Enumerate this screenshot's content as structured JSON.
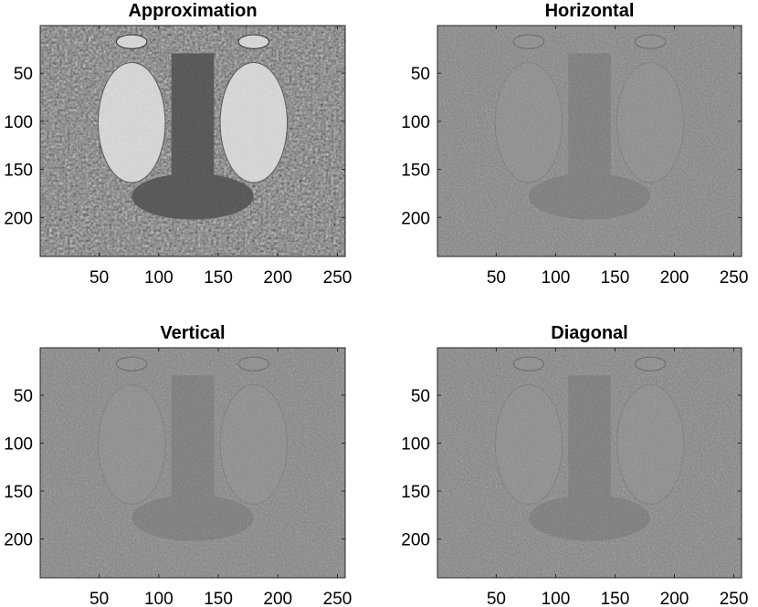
{
  "chart_data": [
    {
      "type": "image",
      "title": "Approximation",
      "xlim": [
        0.5,
        256.5
      ],
      "ylim": [
        0.5,
        240.5
      ],
      "y_reversed": true,
      "xticks": [
        50,
        100,
        150,
        200,
        250
      ],
      "yticks": [
        50,
        100,
        150,
        200
      ]
    },
    {
      "type": "image",
      "title": "Horizontal",
      "xlim": [
        0.5,
        256.5
      ],
      "ylim": [
        0.5,
        240.5
      ],
      "y_reversed": true,
      "xticks": [
        50,
        100,
        150,
        200,
        250
      ],
      "yticks": [
        50,
        100,
        150,
        200
      ]
    },
    {
      "type": "image",
      "title": "Vertical",
      "xlim": [
        0.5,
        256.5
      ],
      "ylim": [
        0.5,
        240.5
      ],
      "y_reversed": true,
      "xticks": [
        50,
        100,
        150,
        200,
        250
      ],
      "yticks": [
        50,
        100,
        150,
        200
      ]
    },
    {
      "type": "image",
      "title": "Diagonal",
      "xlim": [
        0.5,
        256.5
      ],
      "ylim": [
        0.5,
        240.5
      ],
      "y_reversed": true,
      "xticks": [
        50,
        100,
        150,
        200,
        250
      ],
      "yticks": [
        50,
        100,
        150,
        200
      ]
    }
  ]
}
